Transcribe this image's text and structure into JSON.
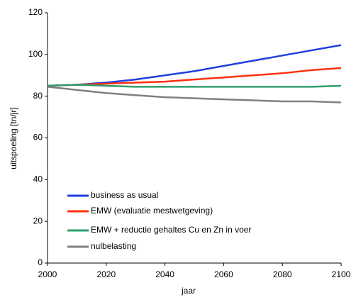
{
  "chart_data": {
    "type": "line",
    "x_label": "jaar",
    "y_label": "uitspoeling [tn/jr]",
    "x": [
      2000,
      2010,
      2020,
      2030,
      2040,
      2050,
      2060,
      2070,
      2080,
      2090,
      2100
    ],
    "series": [
      {
        "name": "business as usual",
        "color": "#1f3fe0",
        "values": [
          85,
          85.5,
          86.5,
          88,
          90,
          92,
          94.5,
          97,
          99.5,
          102,
          104.5
        ]
      },
      {
        "name": "EMW (evaluatie mestwetgeving)",
        "color": "#ff3010",
        "values": [
          85,
          85.5,
          86,
          86.5,
          87,
          88,
          89,
          90,
          91,
          92.5,
          93.5
        ]
      },
      {
        "name": "EMW + reductie gehaltes Cu en Zn in voer",
        "color": "#2e9e6e",
        "values": [
          85,
          85.5,
          85,
          84.5,
          84.5,
          84.5,
          84.5,
          84.5,
          84.5,
          84.5,
          85
        ]
      },
      {
        "name": "nulbelasting",
        "color": "#808080",
        "values": [
          84.5,
          83,
          81.5,
          80.5,
          79.5,
          79,
          78.5,
          78,
          77.5,
          77.5,
          77
        ]
      }
    ],
    "xlim": [
      2000,
      2100
    ],
    "xticks": [
      2000,
      2020,
      2040,
      2060,
      2080,
      2100
    ],
    "ylim": [
      0,
      120
    ],
    "yticks": [
      0,
      20,
      40,
      60,
      80,
      100,
      120
    ],
    "grid": false,
    "legend": "lower left"
  }
}
